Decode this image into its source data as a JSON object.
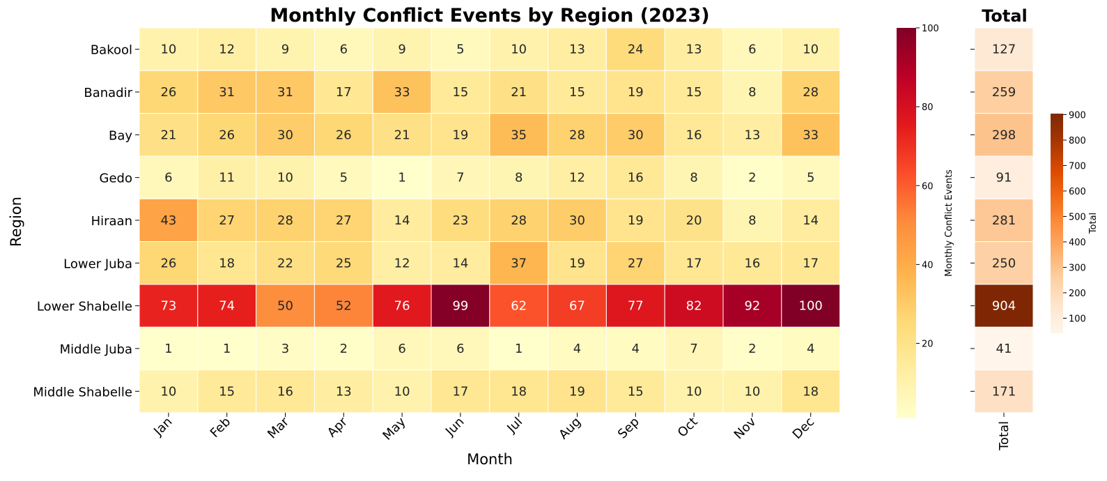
{
  "chart_data": [
    {
      "type": "heatmap",
      "title": "Monthly Conflict Events by Region (2023)",
      "xlabel": "Month",
      "ylabel": "Region",
      "columns": [
        "Jan",
        "Feb",
        "Mar",
        "Apr",
        "May",
        "Jun",
        "Jul",
        "Aug",
        "Sep",
        "Oct",
        "Nov",
        "Dec"
      ],
      "rows": [
        "Bakool",
        "Banadir",
        "Bay",
        "Gedo",
        "Hiraan",
        "Lower Juba",
        "Lower Shabelle",
        "Middle Juba",
        "Middle Shabelle"
      ],
      "values": [
        [
          10,
          12,
          9,
          6,
          9,
          5,
          10,
          13,
          24,
          13,
          6,
          10
        ],
        [
          26,
          31,
          31,
          17,
          33,
          15,
          21,
          15,
          19,
          15,
          8,
          28
        ],
        [
          21,
          26,
          30,
          26,
          21,
          19,
          35,
          28,
          30,
          16,
          13,
          33
        ],
        [
          6,
          11,
          10,
          5,
          1,
          7,
          8,
          12,
          16,
          8,
          2,
          5
        ],
        [
          43,
          27,
          28,
          27,
          14,
          23,
          28,
          30,
          19,
          20,
          8,
          14
        ],
        [
          26,
          18,
          22,
          25,
          12,
          14,
          37,
          19,
          27,
          17,
          16,
          17
        ],
        [
          73,
          74,
          50,
          52,
          76,
          99,
          62,
          67,
          77,
          82,
          92,
          100
        ],
        [
          1,
          1,
          3,
          2,
          6,
          6,
          1,
          4,
          4,
          7,
          2,
          4
        ],
        [
          10,
          15,
          16,
          13,
          10,
          17,
          18,
          19,
          15,
          10,
          10,
          18
        ]
      ],
      "colormap": "YlOrRd",
      "vmin": 1,
      "vmax": 100,
      "colorbar": {
        "label": "Monthly Conflict Events",
        "ticks": [
          20,
          40,
          60,
          80,
          100
        ]
      }
    },
    {
      "type": "heatmap",
      "title": "Total",
      "columns": [
        "Total"
      ],
      "rows": [
        "Bakool",
        "Banadir",
        "Bay",
        "Gedo",
        "Hiraan",
        "Lower Juba",
        "Lower Shabelle",
        "Middle Juba",
        "Middle Shabelle"
      ],
      "values": [
        [
          127
        ],
        [
          259
        ],
        [
          298
        ],
        [
          91
        ],
        [
          281
        ],
        [
          250
        ],
        [
          904
        ],
        [
          41
        ],
        [
          171
        ]
      ],
      "colormap": "Oranges",
      "vmin": 41,
      "vmax": 904,
      "colorbar": {
        "label": "Total",
        "ticks": [
          100,
          200,
          300,
          400,
          500,
          600,
          700,
          800,
          900
        ]
      }
    }
  ]
}
